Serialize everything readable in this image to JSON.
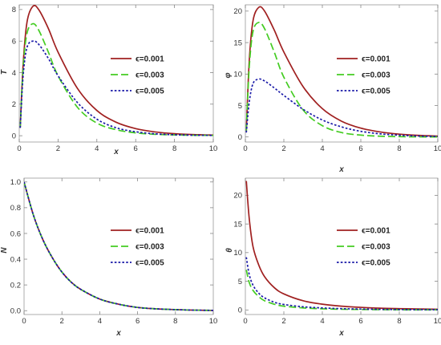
{
  "figure": {
    "background": "#ffffff"
  },
  "chart_data": [
    {
      "type": "line",
      "ylabel": "T",
      "xlabel": "x",
      "xlim": [
        0,
        10
      ],
      "ylim": [
        -0.4,
        8.3
      ],
      "xticks": [
        "0",
        "2",
        "4",
        "6",
        "8",
        "10"
      ],
      "yticks": [
        "0",
        "2",
        "4",
        "6",
        "8"
      ],
      "grid": false,
      "legend": "center-right",
      "series": [
        {
          "name": "ϵ=0.001",
          "color": "#a02020",
          "dash": "solid",
          "x": [
            0.05,
            0.2,
            0.4,
            0.7,
            1.0,
            1.5,
            2.0,
            3.0,
            4.0,
            5.0,
            6.0,
            7.0,
            8.0,
            9.0,
            10.0
          ],
          "y": [
            0.5,
            4.5,
            7.2,
            8.2,
            8.0,
            6.8,
            5.3,
            3.0,
            1.6,
            0.85,
            0.45,
            0.24,
            0.13,
            0.07,
            0.04
          ]
        },
        {
          "name": "ϵ=0.003",
          "color": "#44cc22",
          "dash": "long",
          "x": [
            0.05,
            0.2,
            0.4,
            0.7,
            1.0,
            1.5,
            2.0,
            3.0,
            4.0,
            5.0,
            6.0,
            7.0,
            8.0,
            9.0,
            10.0
          ],
          "y": [
            0.5,
            4.3,
            6.5,
            7.1,
            6.7,
            5.3,
            3.8,
            1.8,
            0.8,
            0.38,
            0.18,
            0.09,
            0.05,
            0.03,
            0.02
          ]
        },
        {
          "name": "ϵ=0.005",
          "color": "#1a1aa8",
          "dash": "short",
          "x": [
            0.05,
            0.2,
            0.4,
            0.7,
            1.0,
            1.5,
            2.0,
            3.0,
            4.0,
            5.0,
            6.0,
            7.0,
            8.0,
            9.0,
            10.0
          ],
          "y": [
            0.5,
            3.8,
            5.6,
            6.0,
            5.8,
            4.9,
            3.8,
            2.1,
            1.05,
            0.5,
            0.25,
            0.12,
            0.06,
            0.03,
            0.02
          ]
        }
      ]
    },
    {
      "type": "line",
      "ylabel": "φ",
      "xlabel": "x",
      "xlim": [
        0,
        10
      ],
      "ylim": [
        -0.8,
        21
      ],
      "xticks": [
        "0",
        "2",
        "4",
        "6",
        "8",
        "10"
      ],
      "yticks": [
        "0",
        "5",
        "10",
        "15",
        "20"
      ],
      "grid": false,
      "legend": "center-right",
      "series": [
        {
          "name": "ϵ=0.001",
          "color": "#a02020",
          "dash": "solid",
          "x": [
            0.05,
            0.2,
            0.4,
            0.7,
            1.0,
            1.5,
            2.0,
            3.0,
            4.0,
            5.0,
            6.0,
            7.0,
            8.0,
            9.0,
            10.0
          ],
          "y": [
            1.0,
            12.0,
            18.5,
            20.6,
            20.0,
            17.0,
            13.5,
            8.0,
            4.5,
            2.5,
            1.4,
            0.8,
            0.45,
            0.25,
            0.15
          ]
        },
        {
          "name": "ϵ=0.003",
          "color": "#44cc22",
          "dash": "long",
          "x": [
            0.05,
            0.2,
            0.4,
            0.7,
            1.0,
            1.5,
            2.0,
            3.0,
            4.0,
            5.0,
            6.0,
            7.0,
            8.0,
            9.0,
            10.0
          ],
          "y": [
            1.0,
            11.0,
            16.8,
            18.2,
            17.2,
            13.5,
            9.5,
            4.3,
            1.8,
            0.7,
            0.3,
            0.12,
            0.05,
            0.02,
            0.01
          ]
        },
        {
          "name": "ϵ=0.005",
          "color": "#1a1aa8",
          "dash": "short",
          "x": [
            0.05,
            0.2,
            0.4,
            0.7,
            1.0,
            1.5,
            2.0,
            3.0,
            4.0,
            5.0,
            6.0,
            7.0,
            8.0,
            9.0,
            10.0
          ],
          "y": [
            0.7,
            5.5,
            8.5,
            9.2,
            8.9,
            7.8,
            6.6,
            4.4,
            2.7,
            1.6,
            0.9,
            0.5,
            0.28,
            0.15,
            0.08
          ]
        }
      ]
    },
    {
      "type": "line",
      "ylabel": "N",
      "xlabel": "x",
      "xlim": [
        0,
        10
      ],
      "ylim": [
        -0.03,
        1.03
      ],
      "xticks": [
        "0",
        "2",
        "4",
        "6",
        "8",
        "10"
      ],
      "yticks": [
        "0.0",
        "0.2",
        "0.4",
        "0.6",
        "0.8",
        "1.0"
      ],
      "grid": false,
      "legend": "center-right",
      "series": [
        {
          "name": "ϵ=0.001",
          "color": "#a02020",
          "dash": "solid",
          "x": [
            0,
            0.5,
            1.0,
            1.5,
            2.0,
            2.5,
            3.0,
            4.0,
            5.0,
            6.0,
            7.0,
            8.0,
            9.0,
            10.0
          ],
          "y": [
            1.0,
            0.74,
            0.55,
            0.41,
            0.3,
            0.22,
            0.165,
            0.09,
            0.05,
            0.025,
            0.014,
            0.008,
            0.004,
            0.002
          ]
        },
        {
          "name": "ϵ=0.003",
          "color": "#44cc22",
          "dash": "long",
          "x": [
            0,
            0.5,
            1.0,
            1.5,
            2.0,
            2.5,
            3.0,
            4.0,
            5.0,
            6.0,
            7.0,
            8.0,
            9.0,
            10.0
          ],
          "y": [
            1.0,
            0.74,
            0.55,
            0.41,
            0.3,
            0.22,
            0.165,
            0.09,
            0.05,
            0.025,
            0.014,
            0.008,
            0.004,
            0.002
          ]
        },
        {
          "name": "ϵ=0.005",
          "color": "#1a1aa8",
          "dash": "short",
          "x": [
            0,
            0.5,
            1.0,
            1.5,
            2.0,
            2.5,
            3.0,
            4.0,
            5.0,
            6.0,
            7.0,
            8.0,
            9.0,
            10.0
          ],
          "y": [
            1.0,
            0.74,
            0.55,
            0.41,
            0.3,
            0.22,
            0.165,
            0.09,
            0.05,
            0.025,
            0.014,
            0.008,
            0.004,
            0.002
          ]
        }
      ]
    },
    {
      "type": "line",
      "ylabel": "θ",
      "xlabel": "x",
      "xlim": [
        0,
        10
      ],
      "ylim": [
        -0.8,
        23
      ],
      "xticks": [
        "0",
        "2",
        "4",
        "6",
        "8",
        "10"
      ],
      "yticks": [
        "0",
        "5",
        "10",
        "15",
        "20"
      ],
      "grid": false,
      "legend": "center-right",
      "series": [
        {
          "name": "ϵ=0.001",
          "color": "#a02020",
          "dash": "solid",
          "x": [
            0.05,
            0.2,
            0.4,
            0.7,
            1.0,
            1.5,
            2.0,
            3.0,
            4.0,
            5.0,
            6.0,
            7.0,
            8.0,
            9.0,
            10.0
          ],
          "y": [
            22.5,
            16.0,
            11.0,
            7.8,
            5.8,
            3.9,
            2.8,
            1.6,
            1.0,
            0.65,
            0.45,
            0.3,
            0.22,
            0.16,
            0.12
          ]
        },
        {
          "name": "ϵ=0.003",
          "color": "#44cc22",
          "dash": "long",
          "x": [
            0.05,
            0.2,
            0.4,
            0.7,
            1.0,
            1.5,
            2.0,
            3.0,
            4.0,
            5.0,
            6.0,
            7.0,
            8.0,
            9.0,
            10.0
          ],
          "y": [
            7.0,
            4.8,
            3.4,
            2.3,
            1.6,
            1.0,
            0.65,
            0.35,
            0.2,
            0.12,
            0.08,
            0.05,
            0.03,
            0.02,
            0.02
          ]
        },
        {
          "name": "ϵ=0.005",
          "color": "#1a1aa8",
          "dash": "short",
          "x": [
            0.05,
            0.2,
            0.4,
            0.7,
            1.0,
            1.5,
            2.0,
            3.0,
            4.0,
            5.0,
            6.0,
            7.0,
            8.0,
            9.0,
            10.0
          ],
          "y": [
            9.2,
            6.2,
            4.3,
            2.9,
            2.1,
            1.35,
            0.95,
            0.55,
            0.35,
            0.22,
            0.15,
            0.1,
            0.07,
            0.05,
            0.04
          ]
        }
      ]
    }
  ]
}
